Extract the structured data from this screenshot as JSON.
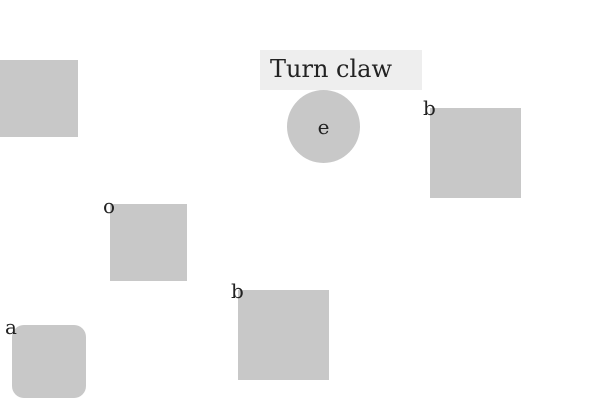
{
  "instruction": {
    "text": "Turn claw"
  },
  "tiles": {
    "circle": {
      "letter": "e",
      "shape": "circle"
    },
    "b_top": {
      "letter": "b",
      "shape": "square"
    },
    "o": {
      "letter": "o",
      "shape": "square"
    },
    "b_bottom": {
      "letter": "b",
      "shape": "square"
    },
    "a": {
      "letter": "a",
      "shape": "rounded-square"
    },
    "edge_left": {
      "shape": "square"
    }
  },
  "colors": {
    "background": "#ffffff",
    "tile": "#c8c8c8",
    "instruction_bg": "#eeeeee",
    "text": "#222222"
  }
}
